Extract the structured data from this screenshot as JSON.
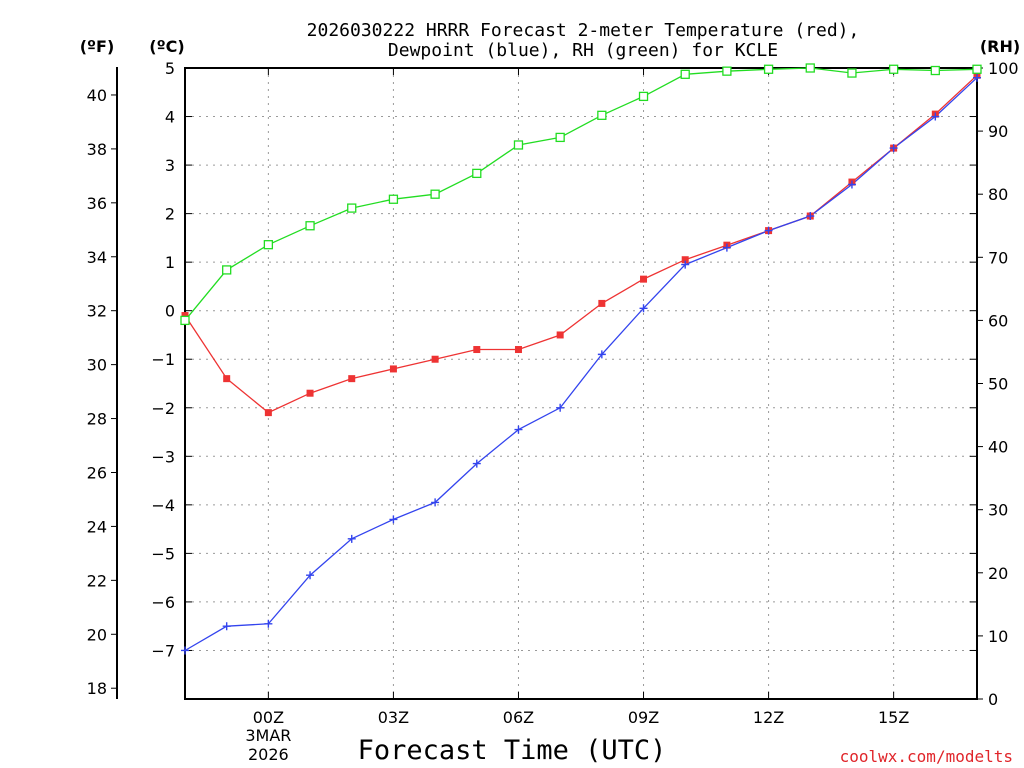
{
  "chart_data": {
    "type": "line",
    "title_lines": [
      "2026030222 HRRR Forecast 2-meter Temperature (red),",
      "Dewpoint (blue), RH (green) for KCLE"
    ],
    "xlabel": "Forecast Time (UTC)",
    "credit": "coolwx.com/modelts",
    "units": {
      "fahrenheit": "(ºF)",
      "celsius": "(ºC)",
      "rh": "(RH)"
    },
    "x": [
      -1,
      0,
      1,
      2,
      3,
      4,
      5,
      6,
      7,
      8,
      9,
      10,
      11,
      12,
      13,
      14,
      15,
      16,
      17,
      18
    ],
    "x_range": [
      -1,
      18
    ],
    "x_ticks": [
      {
        "x": 1,
        "label": "00Z"
      },
      {
        "x": 4,
        "label": "03Z"
      },
      {
        "x": 7,
        "label": "06Z"
      },
      {
        "x": 10,
        "label": "09Z"
      },
      {
        "x": 13,
        "label": "12Z"
      },
      {
        "x": 16,
        "label": "15Z"
      }
    ],
    "date_label": [
      "3MAR",
      "2026"
    ],
    "date_label_x": 1,
    "celsius_axis": {
      "range": [
        -8,
        5
      ],
      "ticks": [
        5,
        4,
        3,
        2,
        1,
        0,
        -1,
        -2,
        -3,
        -4,
        -5,
        -6,
        -7
      ]
    },
    "fahrenheit_axis": {
      "ticks": [
        40,
        38,
        36,
        34,
        32,
        30,
        28,
        26,
        24,
        22,
        20,
        18
      ]
    },
    "rh_axis": {
      "range": [
        0,
        100
      ],
      "ticks": [
        100,
        90,
        80,
        70,
        60,
        50,
        40,
        30,
        20,
        10,
        0
      ]
    },
    "series": [
      {
        "name": "Temperature",
        "axis": "celsius",
        "color": "#ee3333",
        "marker": "filled-square",
        "values": [
          -0.1,
          -1.4,
          -2.1,
          -1.7,
          -1.4,
          -1.2,
          -1.0,
          -0.8,
          -0.8,
          -0.5,
          0.15,
          0.65,
          1.05,
          1.35,
          1.65,
          1.95,
          2.65,
          3.35,
          4.05,
          4.85
        ]
      },
      {
        "name": "Dewpoint",
        "axis": "celsius",
        "color": "#3344ee",
        "marker": "plus",
        "values": [
          -7.0,
          -6.5,
          -6.45,
          -5.45,
          -4.7,
          -4.3,
          -3.95,
          -3.15,
          -2.45,
          -2.0,
          -0.9,
          0.05,
          0.95,
          1.3,
          1.65,
          1.95,
          2.6,
          3.35,
          4.0,
          4.8
        ]
      },
      {
        "name": "RH",
        "axis": "rh",
        "color": "#22dd22",
        "marker": "open-square",
        "values": [
          60,
          68,
          72,
          75,
          77.8,
          79.2,
          80,
          83.3,
          87.8,
          89,
          92.5,
          95.5,
          99,
          99.5,
          99.8,
          100,
          99.2,
          99.8,
          99.6,
          99.8
        ]
      }
    ]
  }
}
